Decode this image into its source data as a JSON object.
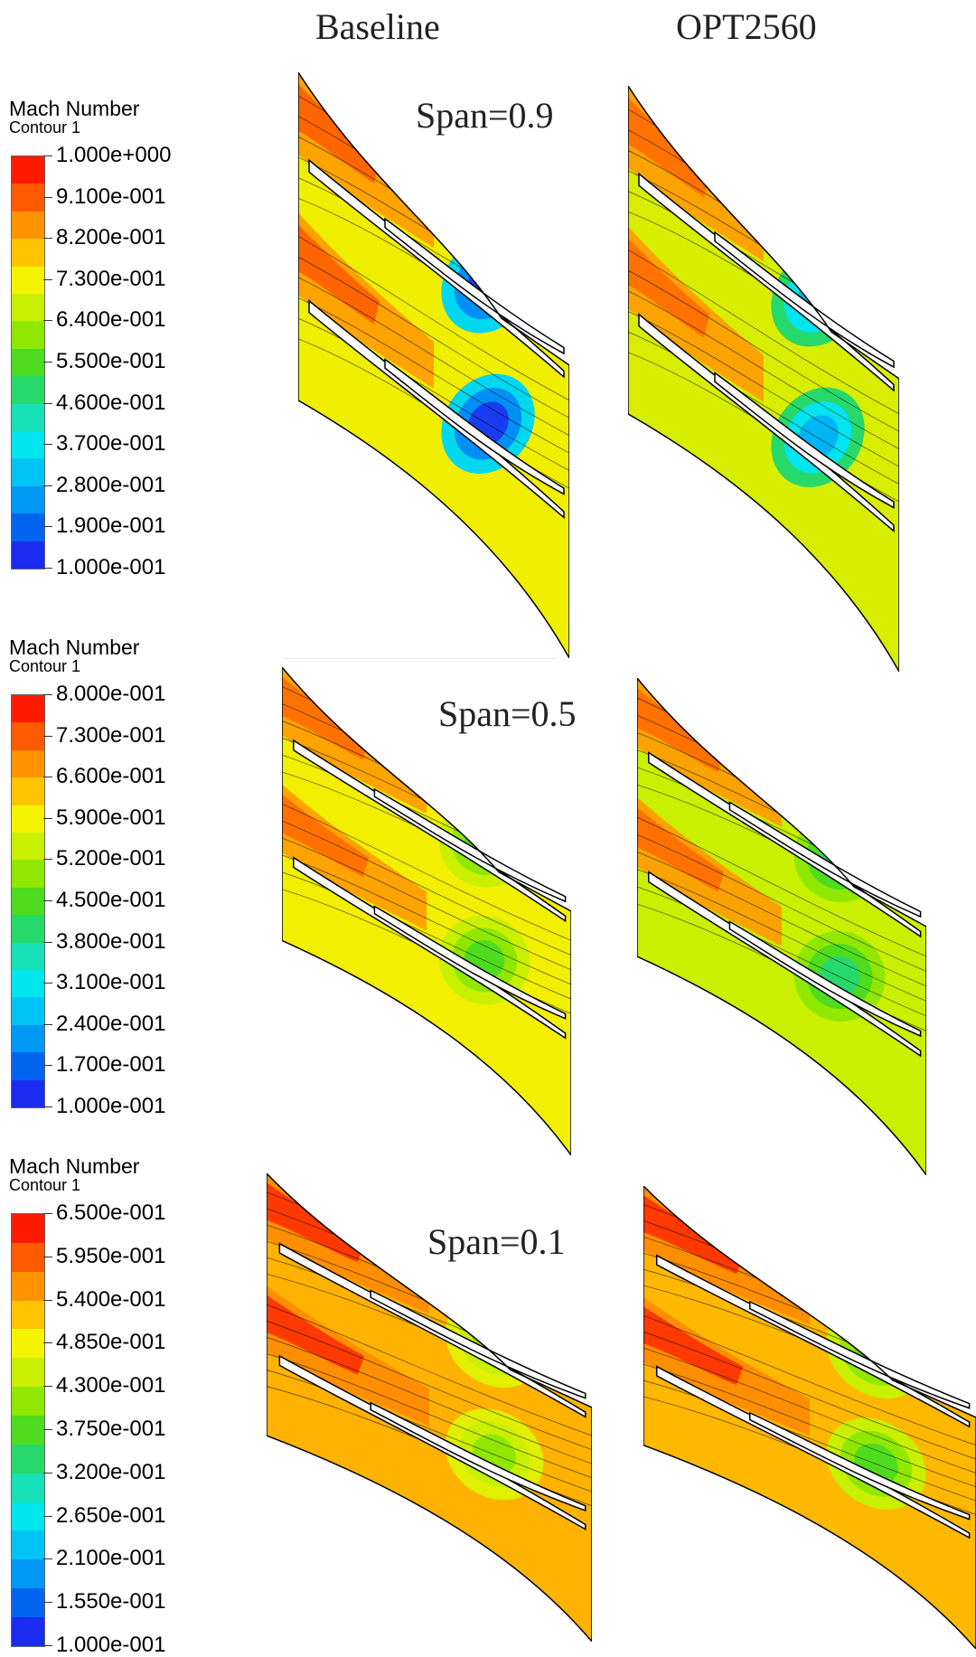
{
  "columns": {
    "baseline": "Baseline",
    "optimized": "OPT2560"
  },
  "legends": [
    {
      "title": "Mach Number",
      "subtitle": "Contour 1",
      "labels": [
        "1.000e+000",
        "9.100e-001",
        "8.200e-001",
        "7.300e-001",
        "6.400e-001",
        "5.500e-001",
        "4.600e-001",
        "3.700e-001",
        "2.800e-001",
        "1.900e-001",
        "1.000e-001"
      ]
    },
    {
      "title": "Mach Number",
      "subtitle": "Contour 1",
      "labels": [
        "8.000e-001",
        "7.300e-001",
        "6.600e-001",
        "5.900e-001",
        "5.200e-001",
        "4.500e-001",
        "3.800e-001",
        "3.100e-001",
        "2.400e-001",
        "1.700e-001",
        "1.000e-001"
      ]
    },
    {
      "title": "Mach Number",
      "subtitle": "Contour 1",
      "labels": [
        "6.500e-001",
        "5.950e-001",
        "5.400e-001",
        "4.850e-001",
        "4.300e-001",
        "3.750e-001",
        "3.200e-001",
        "2.650e-001",
        "2.100e-001",
        "1.550e-001",
        "1.000e-001"
      ]
    }
  ],
  "spans": [
    "Span=0.9",
    "Span=0.5",
    "Span=0.1"
  ],
  "colormap": [
    "#ff1a00",
    "#ff5a00",
    "#ff9300",
    "#ffc400",
    "#f4f400",
    "#c9f000",
    "#90e800",
    "#4fdb1e",
    "#27d86b",
    "#16e0b5",
    "#00e5ee",
    "#00c4f5",
    "#0098f5",
    "#0064f0",
    "#1a2cf0"
  ]
}
